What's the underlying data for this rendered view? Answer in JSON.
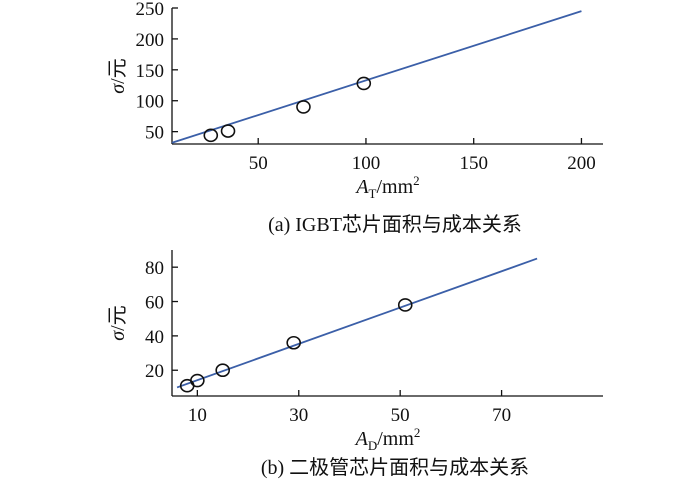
{
  "chart_data": [
    {
      "type": "scatter",
      "caption": "(a)  IGBT芯片面积与成本关系",
      "xlabel_symbol": "A",
      "xlabel_sub": "T",
      "xlabel_unit": "/mm",
      "xlabel_sup": "2",
      "ylabel_symbol": "σ",
      "ylabel_unit": "/元",
      "xlim": [
        10,
        210
      ],
      "ylim": [
        30,
        250
      ],
      "xticks": [
        50,
        100,
        150,
        200
      ],
      "yticks": [
        50,
        100,
        150,
        200,
        250
      ],
      "points": [
        {
          "x": 28,
          "y": 44
        },
        {
          "x": 36,
          "y": 51
        },
        {
          "x": 71,
          "y": 90
        },
        {
          "x": 99,
          "y": 128
        }
      ],
      "fit_line": {
        "x": [
          10,
          200
        ],
        "y": [
          32,
          245
        ]
      }
    },
    {
      "type": "scatter",
      "caption": "(b)  二极管芯片面积与成本关系",
      "xlabel_symbol": "A",
      "xlabel_sub": "D",
      "xlabel_unit": "/mm",
      "xlabel_sup": "2",
      "ylabel_symbol": "σ",
      "ylabel_unit": "/元",
      "xlim": [
        5,
        90
      ],
      "ylim": [
        5,
        90
      ],
      "xticks": [
        10,
        30,
        50,
        70
      ],
      "yticks": [
        20,
        40,
        60,
        80
      ],
      "points": [
        {
          "x": 8,
          "y": 11
        },
        {
          "x": 10,
          "y": 14
        },
        {
          "x": 15,
          "y": 20
        },
        {
          "x": 29,
          "y": 36
        },
        {
          "x": 51,
          "y": 58
        }
      ],
      "fit_line": {
        "x": [
          6,
          77
        ],
        "y": [
          10,
          85
        ]
      }
    }
  ]
}
